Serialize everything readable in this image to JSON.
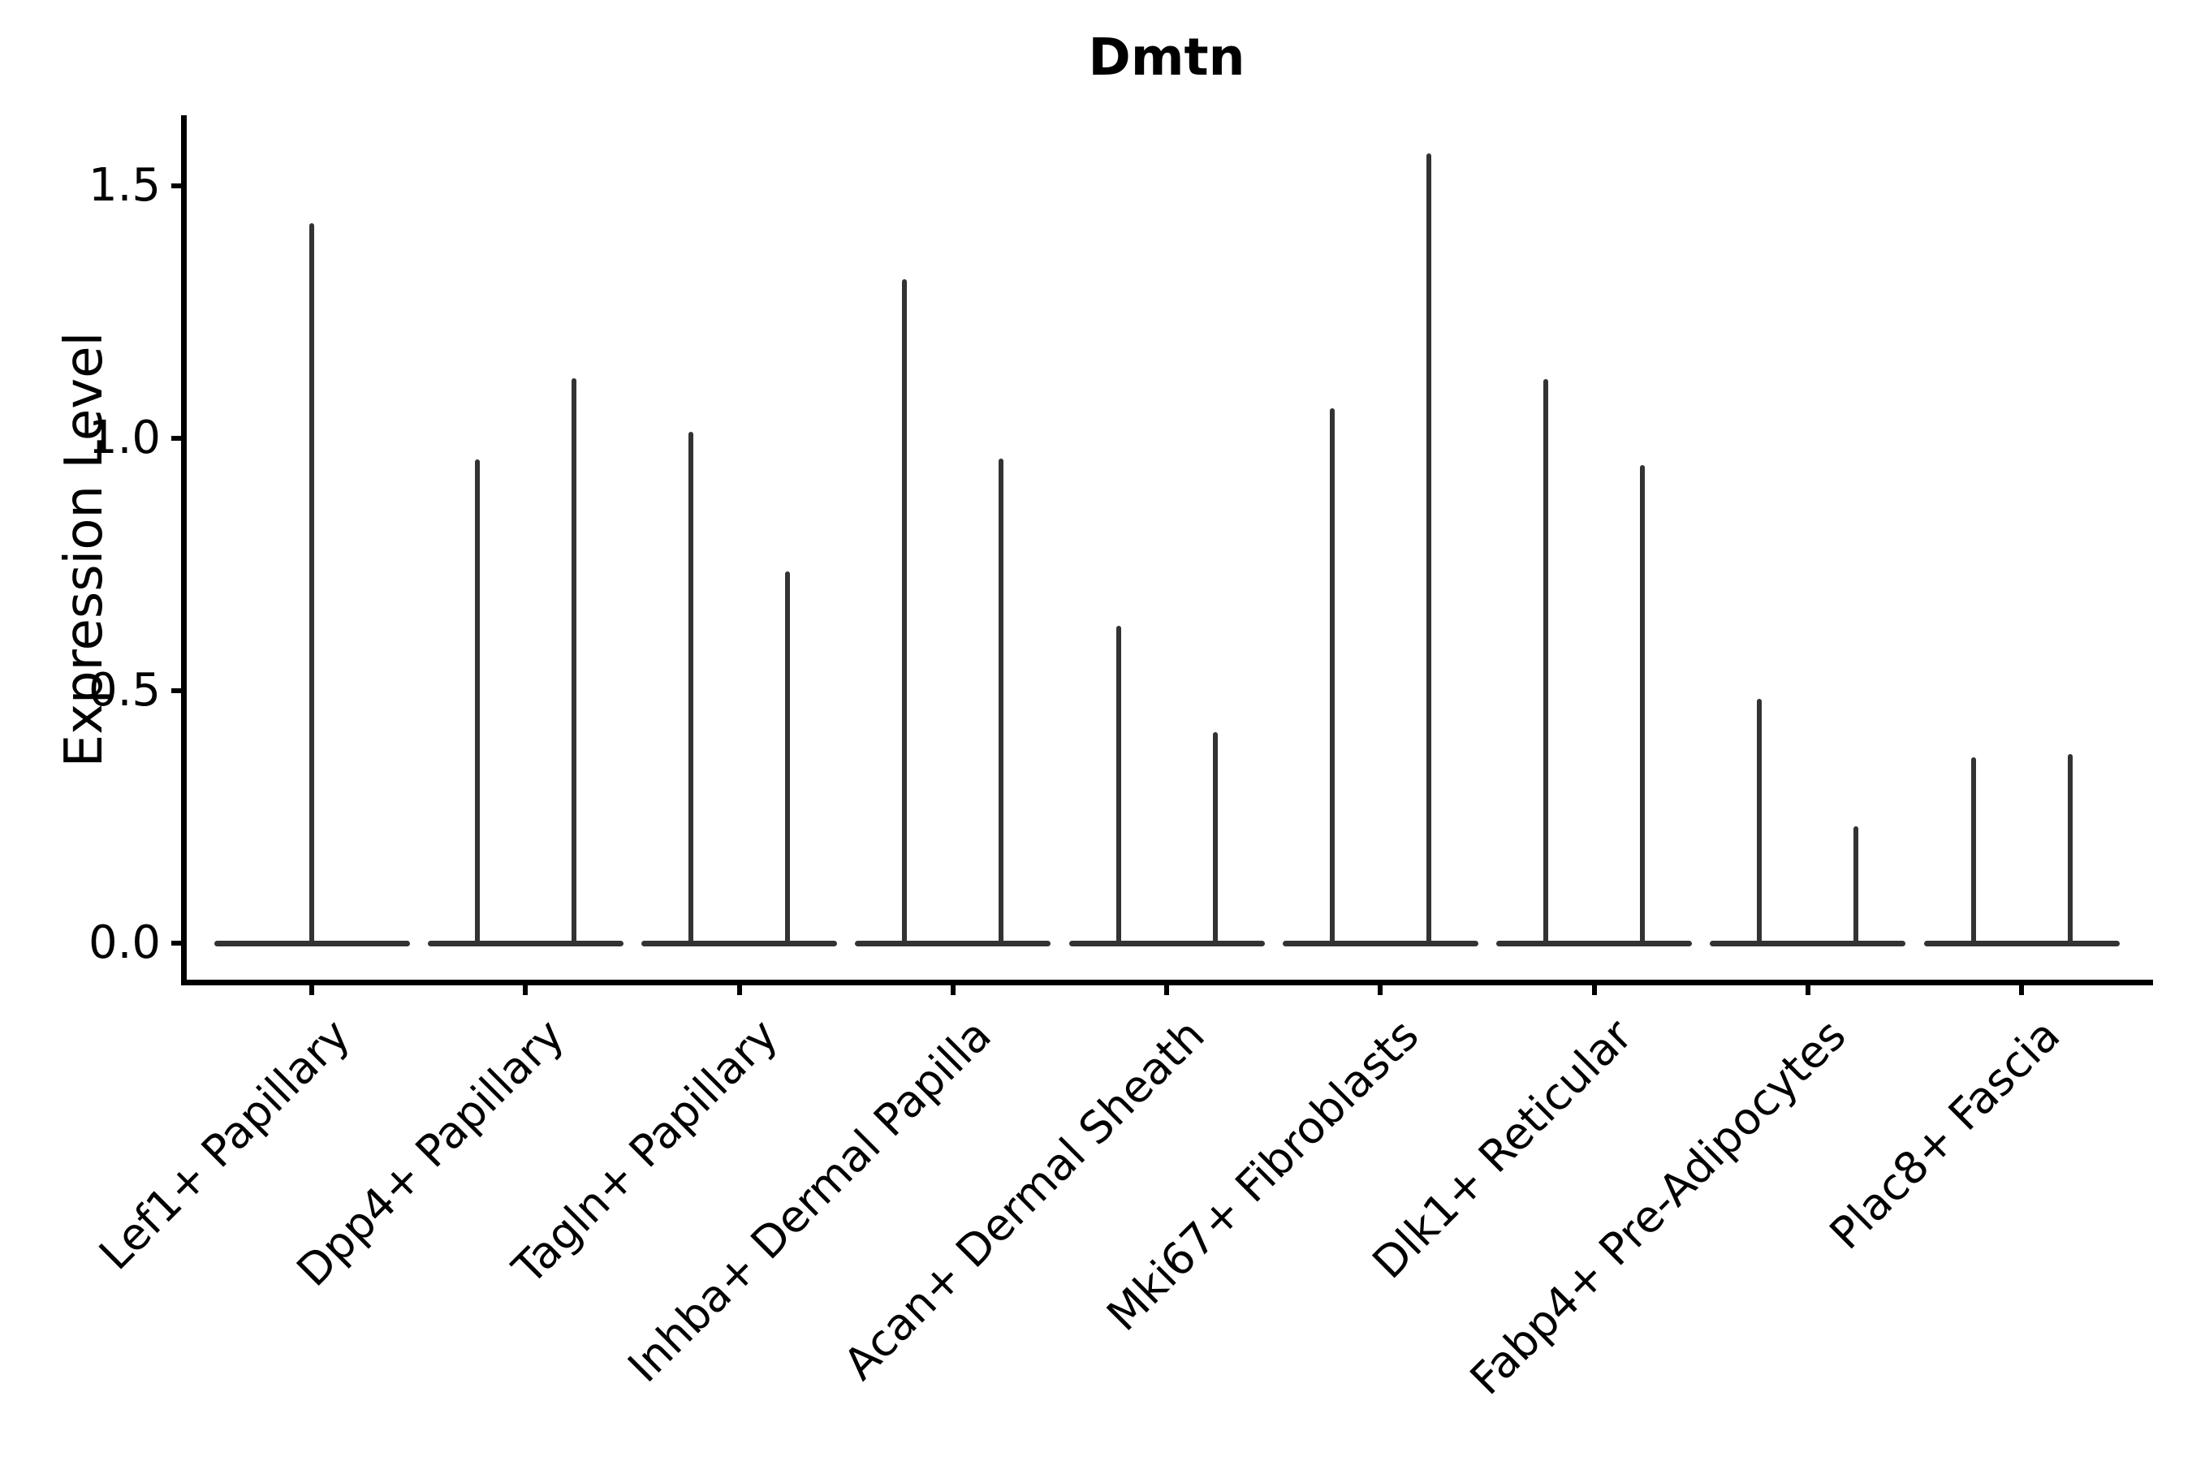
{
  "title": "Dmtn",
  "colors": {
    "background": "#ffffff",
    "ink": "#000000",
    "violin_stroke": "#333333"
  },
  "chart_data": {
    "type": "violin",
    "title": "Dmtn",
    "xlabel": "",
    "ylabel": "Expression Level",
    "ylim": [
      -0.08,
      1.65
    ],
    "grid": false,
    "legend": "none",
    "y_ticks": [
      0.0,
      0.5,
      1.0,
      1.5
    ],
    "y_tick_labels": [
      "0.0",
      "0.5",
      "1.0",
      "1.5"
    ],
    "categories": [
      "Lef1+ Papillary",
      "Dpp4+ Papillary",
      "Tagln+ Papillary",
      "Inhba+ Dermal Papilla",
      "Acan+ Dermal Sheath",
      "Mki67+ Fibroblasts",
      "Dlk1+ Reticular",
      "Fabp4+ Pre-Adipocytes",
      "Plac8+ Fascia"
    ],
    "description": "Violin plot of Dmtn expression per fibroblast cluster; violins are collapsed flat at 0 with thin spikes reaching the maximum expression of each violin. Most categories contain two side-by-side violins; the first category contains one centered violin.",
    "violins": [
      {
        "category": "Lef1+ Papillary",
        "spike_max_values": [
          1.426
        ]
      },
      {
        "category": "Dpp4+ Papillary",
        "spike_max_values": [
          0.958,
          1.119
        ]
      },
      {
        "category": "Tagln+ Papillary",
        "spike_max_values": [
          1.013,
          0.736
        ]
      },
      {
        "category": "Inhba+ Dermal Papilla",
        "spike_max_values": [
          1.315,
          0.96
        ]
      },
      {
        "category": "Acan+ Dermal Sheath",
        "spike_max_values": [
          0.629,
          0.418
        ]
      },
      {
        "category": "Mki67+ Fibroblasts",
        "spike_max_values": [
          1.06,
          1.565
        ]
      },
      {
        "category": "Dlk1+ Reticular",
        "spike_max_values": [
          1.117,
          0.947
        ]
      },
      {
        "category": "Fabp4+ Pre-Adipocytes",
        "spike_max_values": [
          0.484,
          0.232
        ]
      },
      {
        "category": "Plac8+ Fascia",
        "spike_max_values": [
          0.368,
          0.375
        ]
      }
    ]
  }
}
